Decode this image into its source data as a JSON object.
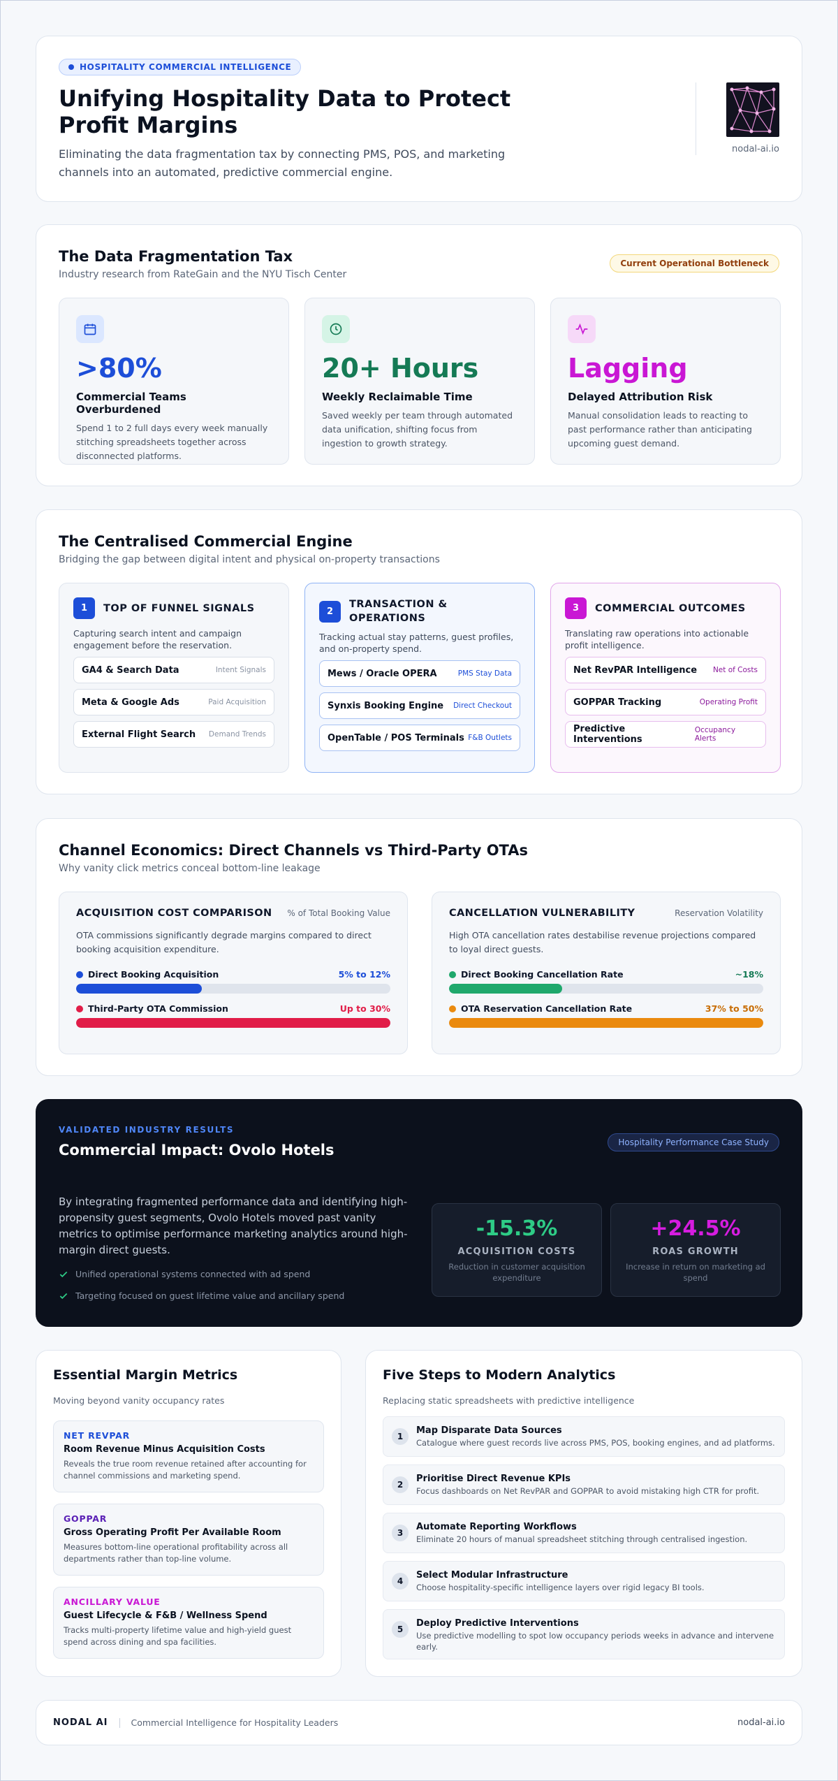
{
  "hero": {
    "pill": "HOSPITALITY COMMERCIAL INTELLIGENCE",
    "title": "Unifying Hospitality Data to Protect Profit Margins",
    "subtitle": "Eliminating the data fragmentation tax by connecting PMS, POS, and marketing channels into an automated, predictive commercial engine.",
    "logo_url": "nodal-ai.io"
  },
  "tax": {
    "title": "The Data Fragmentation Tax",
    "subtitle": "Industry research from RateGain and the NYU Tisch Center",
    "badge": "Current Operational Bottleneck",
    "stats": [
      {
        "icon": "calendar-icon",
        "value": ">80%",
        "label": "Commercial Teams Overburdened",
        "desc": "Spend 1 to 2 full days every week manually stitching spreadsheets together across disconnected platforms.",
        "color": "#1d4ed8"
      },
      {
        "icon": "clock-icon",
        "value": "20+ Hours",
        "label": "Weekly Reclaimable Time",
        "desc": "Saved weekly per team through automated data unification, shifting focus from ingestion to growth strategy.",
        "color": "#157a55"
      },
      {
        "icon": "activity-icon",
        "value": "Lagging",
        "label": "Delayed Attribution Risk",
        "desc": "Manual consolidation leads to reacting to past performance rather than anticipating upcoming guest demand.",
        "color": "#c917d4"
      }
    ]
  },
  "engine": {
    "title": "The Centralised Commercial Engine",
    "subtitle": "Bridging the gap between digital intent and physical on-property transactions",
    "columns": [
      {
        "num": "1",
        "title": "TOP OF FUNNEL SIGNALS",
        "desc": "Capturing search intent and campaign engagement before the reservation.",
        "items": [
          {
            "name": "GA4 & Search Data",
            "tag": "Intent Signals"
          },
          {
            "name": "Meta & Google Ads",
            "tag": "Paid Acquisition"
          },
          {
            "name": "External Flight Search",
            "tag": "Demand Trends"
          }
        ]
      },
      {
        "num": "2",
        "title": "TRANSACTION & OPERATIONS",
        "desc": "Tracking actual stay patterns, guest profiles, and on-property spend.",
        "items": [
          {
            "name": "Mews / Oracle OPERA",
            "tag": "PMS Stay Data"
          },
          {
            "name": "Synxis Booking Engine",
            "tag": "Direct Checkout"
          },
          {
            "name": "OpenTable / POS Terminals",
            "tag": "F&B Outlets"
          }
        ]
      },
      {
        "num": "3",
        "title": "COMMERCIAL OUTCOMES",
        "desc": "Translating raw operations into actionable profit intelligence.",
        "items": [
          {
            "name": "Net RevPAR Intelligence",
            "tag": "Net of Costs"
          },
          {
            "name": "GOPPAR Tracking",
            "tag": "Operating Profit"
          },
          {
            "name": "Predictive Interventions",
            "tag": "Occupancy Alerts"
          }
        ]
      }
    ]
  },
  "econ": {
    "title": "Channel Economics: Direct Channels vs Third-Party OTAs",
    "subtitle": "Why vanity click metrics conceal bottom-line leakage",
    "boxes": [
      {
        "title": "ACQUISITION COST COMPARISON",
        "meta": "% of Total Booking Value",
        "desc": "OTA commissions significantly degrade margins compared to direct booking acquisition expenditure.",
        "bars": [
          {
            "label": "Direct Booking Acquisition",
            "value": "5% to 12%",
            "fill": 0.4,
            "color": "#1d4ed8"
          },
          {
            "label": "Third-Party OTA Commission",
            "value": "Up to 30%",
            "fill": 1.0,
            "color": "#e11d48"
          }
        ]
      },
      {
        "title": "CANCELLATION VULNERABILITY",
        "meta": "Reservation Volatility",
        "desc": "High OTA cancellation rates destabilise revenue projections compared to loyal direct guests.",
        "bars": [
          {
            "label": "Direct Booking Cancellation Rate",
            "value": "~18%",
            "fill": 0.36,
            "color": "#1fa86c"
          },
          {
            "label": "OTA Reservation Cancellation Rate",
            "value": "37% to 50%",
            "fill": 1.0,
            "color": "#ea8a0e"
          }
        ]
      }
    ]
  },
  "impact": {
    "kicker": "VALIDATED INDUSTRY RESULTS",
    "title": "Commercial Impact: Ovolo Hotels",
    "badge": "Hospitality Performance Case Study",
    "text": "By integrating fragmented performance data and identifying high-propensity guest segments, Ovolo Hotels moved past vanity metrics to optimise performance marketing analytics around high-margin direct guests.",
    "checks": [
      "Unified operational systems connected with ad spend",
      "Targeting focused on guest lifetime value and ancillary spend"
    ],
    "metrics": [
      {
        "value": "-15.3%",
        "label": "ACQUISITION COSTS",
        "desc": "Reduction in customer acquisition expenditure",
        "color": "#2ecc86"
      },
      {
        "value": "+24.5%",
        "label": "ROAS GROWTH",
        "desc": "Increase in return on marketing ad spend",
        "color": "#d61ce0"
      }
    ]
  },
  "metrics": {
    "title": "Essential Margin Metrics",
    "subtitle": "Moving beyond vanity occupancy rates",
    "items": [
      {
        "key": "NET REVPAR",
        "title": "Room Revenue Minus Acquisition Costs",
        "desc": "Reveals the true room revenue retained after accounting for channel commissions and marketing spend.",
        "color": "#1d4ed8"
      },
      {
        "key": "GOPPAR",
        "title": "Gross Operating Profit Per Available Room",
        "desc": "Measures bottom-line operational profitability across all departments rather than top-line volume.",
        "color": "#5b21b6"
      },
      {
        "key": "ANCILLARY VALUE",
        "title": "Guest Lifecycle & F&B / Wellness Spend",
        "desc": "Tracks multi-property lifetime value and high-yield guest spend across dining and spa facilities.",
        "color": "#c917d4"
      }
    ]
  },
  "steps": {
    "title": "Five Steps to Modern Analytics",
    "subtitle": "Replacing static spreadsheets with predictive intelligence",
    "items": [
      {
        "num": "1",
        "title": "Map Disparate Data Sources",
        "desc": "Catalogue where guest records live across PMS, POS, booking engines, and ad platforms."
      },
      {
        "num": "2",
        "title": "Prioritise Direct Revenue KPIs",
        "desc": "Focus dashboards on Net RevPAR and GOPPAR to avoid mistaking high CTR for profit."
      },
      {
        "num": "3",
        "title": "Automate Reporting Workflows",
        "desc": "Eliminate 20 hours of manual spreadsheet stitching through centralised ingestion."
      },
      {
        "num": "4",
        "title": "Select Modular Infrastructure",
        "desc": "Choose hospitality-specific intelligence layers over rigid legacy BI tools."
      },
      {
        "num": "5",
        "title": "Deploy Predictive Interventions",
        "desc": "Use predictive modelling to spot low occupancy periods weeks in advance and intervene early."
      }
    ]
  },
  "footer": {
    "brand": "NODAL AI",
    "tagline": "Commercial Intelligence for Hospitality Leaders",
    "url": "nodal-ai.io"
  }
}
